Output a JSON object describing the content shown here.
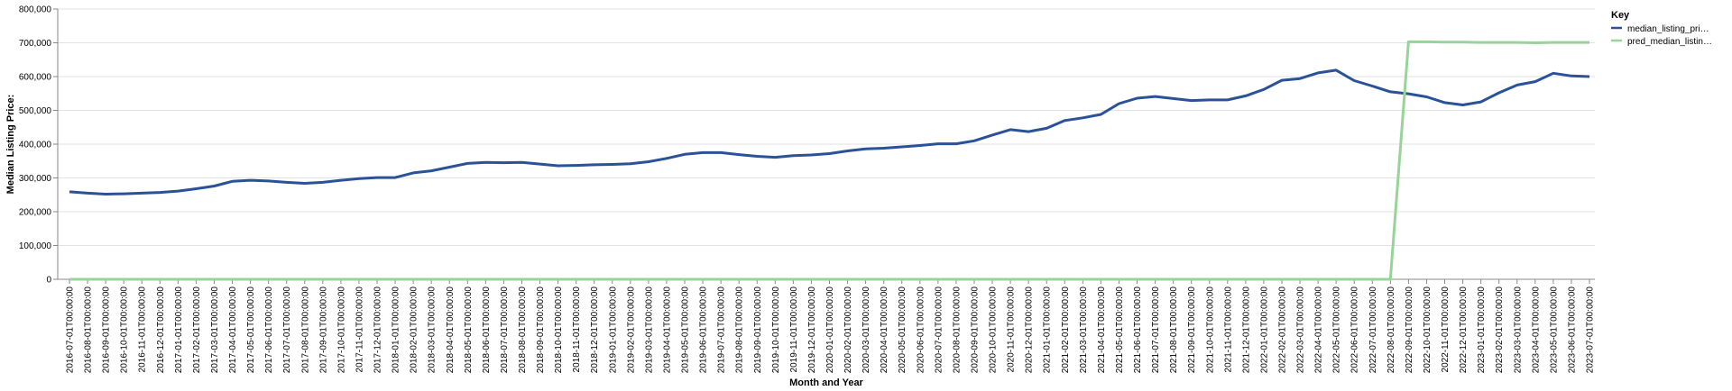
{
  "chart_data": {
    "type": "line",
    "title": "",
    "xlabel": "Month and Year",
    "ylabel": "Median Listing Price:",
    "ylim": [
      0,
      800000
    ],
    "yticks": [
      0,
      100000,
      200000,
      300000,
      400000,
      500000,
      600000,
      700000,
      800000
    ],
    "ytick_labels": [
      "0",
      "100,000",
      "200,000",
      "300,000",
      "400,000",
      "500,000",
      "600,000",
      "700,000",
      "800,000"
    ],
    "grid": true,
    "legend": {
      "title": "Key",
      "position": "right"
    },
    "colors": {
      "median_listing_price": "#2a5298",
      "pred_median_listing_price": "#98d49a"
    },
    "x": [
      "2016-07-01T00:00:00",
      "2016-08-01T00:00:00",
      "2016-09-01T00:00:00",
      "2016-10-01T00:00:00",
      "2016-11-01T00:00:00",
      "2016-12-01T00:00:00",
      "2017-01-01T00:00:00",
      "2017-02-01T00:00:00",
      "2017-03-01T00:00:00",
      "2017-04-01T00:00:00",
      "2017-05-01T00:00:00",
      "2017-06-01T00:00:00",
      "2017-07-01T00:00:00",
      "2017-08-01T00:00:00",
      "2017-09-01T00:00:00",
      "2017-10-01T00:00:00",
      "2017-11-01T00:00:00",
      "2017-12-01T00:00:00",
      "2018-01-01T00:00:00",
      "2018-02-01T00:00:00",
      "2018-03-01T00:00:00",
      "2018-04-01T00:00:00",
      "2018-05-01T00:00:00",
      "2018-06-01T00:00:00",
      "2018-07-01T00:00:00",
      "2018-08-01T00:00:00",
      "2018-09-01T00:00:00",
      "2018-10-01T00:00:00",
      "2018-11-01T00:00:00",
      "2018-12-01T00:00:00",
      "2019-01-01T00:00:00",
      "2019-02-01T00:00:00",
      "2019-03-01T00:00:00",
      "2019-04-01T00:00:00",
      "2019-05-01T00:00:00",
      "2019-06-01T00:00:00",
      "2019-07-01T00:00:00",
      "2019-08-01T00:00:00",
      "2019-09-01T00:00:00",
      "2019-10-01T00:00:00",
      "2019-11-01T00:00:00",
      "2019-12-01T00:00:00",
      "2020-01-01T00:00:00",
      "2020-02-01T00:00:00",
      "2020-03-01T00:00:00",
      "2020-04-01T00:00:00",
      "2020-05-01T00:00:00",
      "2020-06-01T00:00:00",
      "2020-07-01T00:00:00",
      "2020-08-01T00:00:00",
      "2020-09-01T00:00:00",
      "2020-10-01T00:00:00",
      "2020-11-01T00:00:00",
      "2020-12-01T00:00:00",
      "2021-01-01T00:00:00",
      "2021-02-01T00:00:00",
      "2021-03-01T00:00:00",
      "2021-04-01T00:00:00",
      "2021-05-01T00:00:00",
      "2021-06-01T00:00:00",
      "2021-07-01T00:00:00",
      "2021-08-01T00:00:00",
      "2021-09-01T00:00:00",
      "2021-10-01T00:00:00",
      "2021-11-01T00:00:00",
      "2021-12-01T00:00:00",
      "2022-01-01T00:00:00",
      "2022-02-01T00:00:00",
      "2022-03-01T00:00:00",
      "2022-04-01T00:00:00",
      "2022-05-01T00:00:00",
      "2022-06-01T00:00:00",
      "2022-07-01T00:00:00",
      "2022-08-01T00:00:00",
      "2022-09-01T00:00:00",
      "2022-10-01T00:00:00",
      "2022-11-01T00:00:00",
      "2022-12-01T00:00:00",
      "2023-01-01T00:00:00",
      "2023-02-01T00:00:00",
      "2023-03-01T00:00:00",
      "2023-04-01T00:00:00",
      "2023-05-01T00:00:00",
      "2023-06-01T00:00:00",
      "2023-07-01T00:00:00"
    ],
    "series": [
      {
        "name": "median_listing_pri…",
        "values": [
          259000,
          255000,
          252000,
          253000,
          255000,
          257000,
          261000,
          268000,
          276000,
          290000,
          293000,
          291000,
          287000,
          284000,
          287000,
          293000,
          298000,
          301000,
          301000,
          315000,
          321000,
          332000,
          343000,
          346000,
          345000,
          346000,
          341000,
          336000,
          337000,
          339000,
          340000,
          342000,
          348000,
          358000,
          370000,
          375000,
          375000,
          369000,
          364000,
          361000,
          366000,
          368000,
          372000,
          380000,
          386000,
          388000,
          392000,
          396000,
          401000,
          401000,
          410000,
          427000,
          443000,
          437000,
          447000,
          470000,
          478000,
          488000,
          520000,
          536000,
          541000,
          535000,
          529000,
          531000,
          531000,
          543000,
          562000,
          589000,
          594000,
          611000,
          619000,
          588000,
          572000,
          555000,
          549000,
          540000,
          523000,
          516000,
          525000,
          552000,
          575000,
          585000,
          610000,
          602000,
          600000
        ]
      },
      {
        "name": "pred_median_listin…",
        "values": [
          0,
          0,
          0,
          0,
          0,
          0,
          0,
          0,
          0,
          0,
          0,
          0,
          0,
          0,
          0,
          0,
          0,
          0,
          0,
          0,
          0,
          0,
          0,
          0,
          0,
          0,
          0,
          0,
          0,
          0,
          0,
          0,
          0,
          0,
          0,
          0,
          0,
          0,
          0,
          0,
          0,
          0,
          0,
          0,
          0,
          0,
          0,
          0,
          0,
          0,
          0,
          0,
          0,
          0,
          0,
          0,
          0,
          0,
          0,
          0,
          0,
          0,
          0,
          0,
          0,
          0,
          0,
          0,
          0,
          0,
          0,
          0,
          0,
          0,
          703000,
          703000,
          702000,
          702000,
          701000,
          701000,
          701000,
          700000,
          701000,
          701000,
          701000
        ]
      }
    ]
  }
}
